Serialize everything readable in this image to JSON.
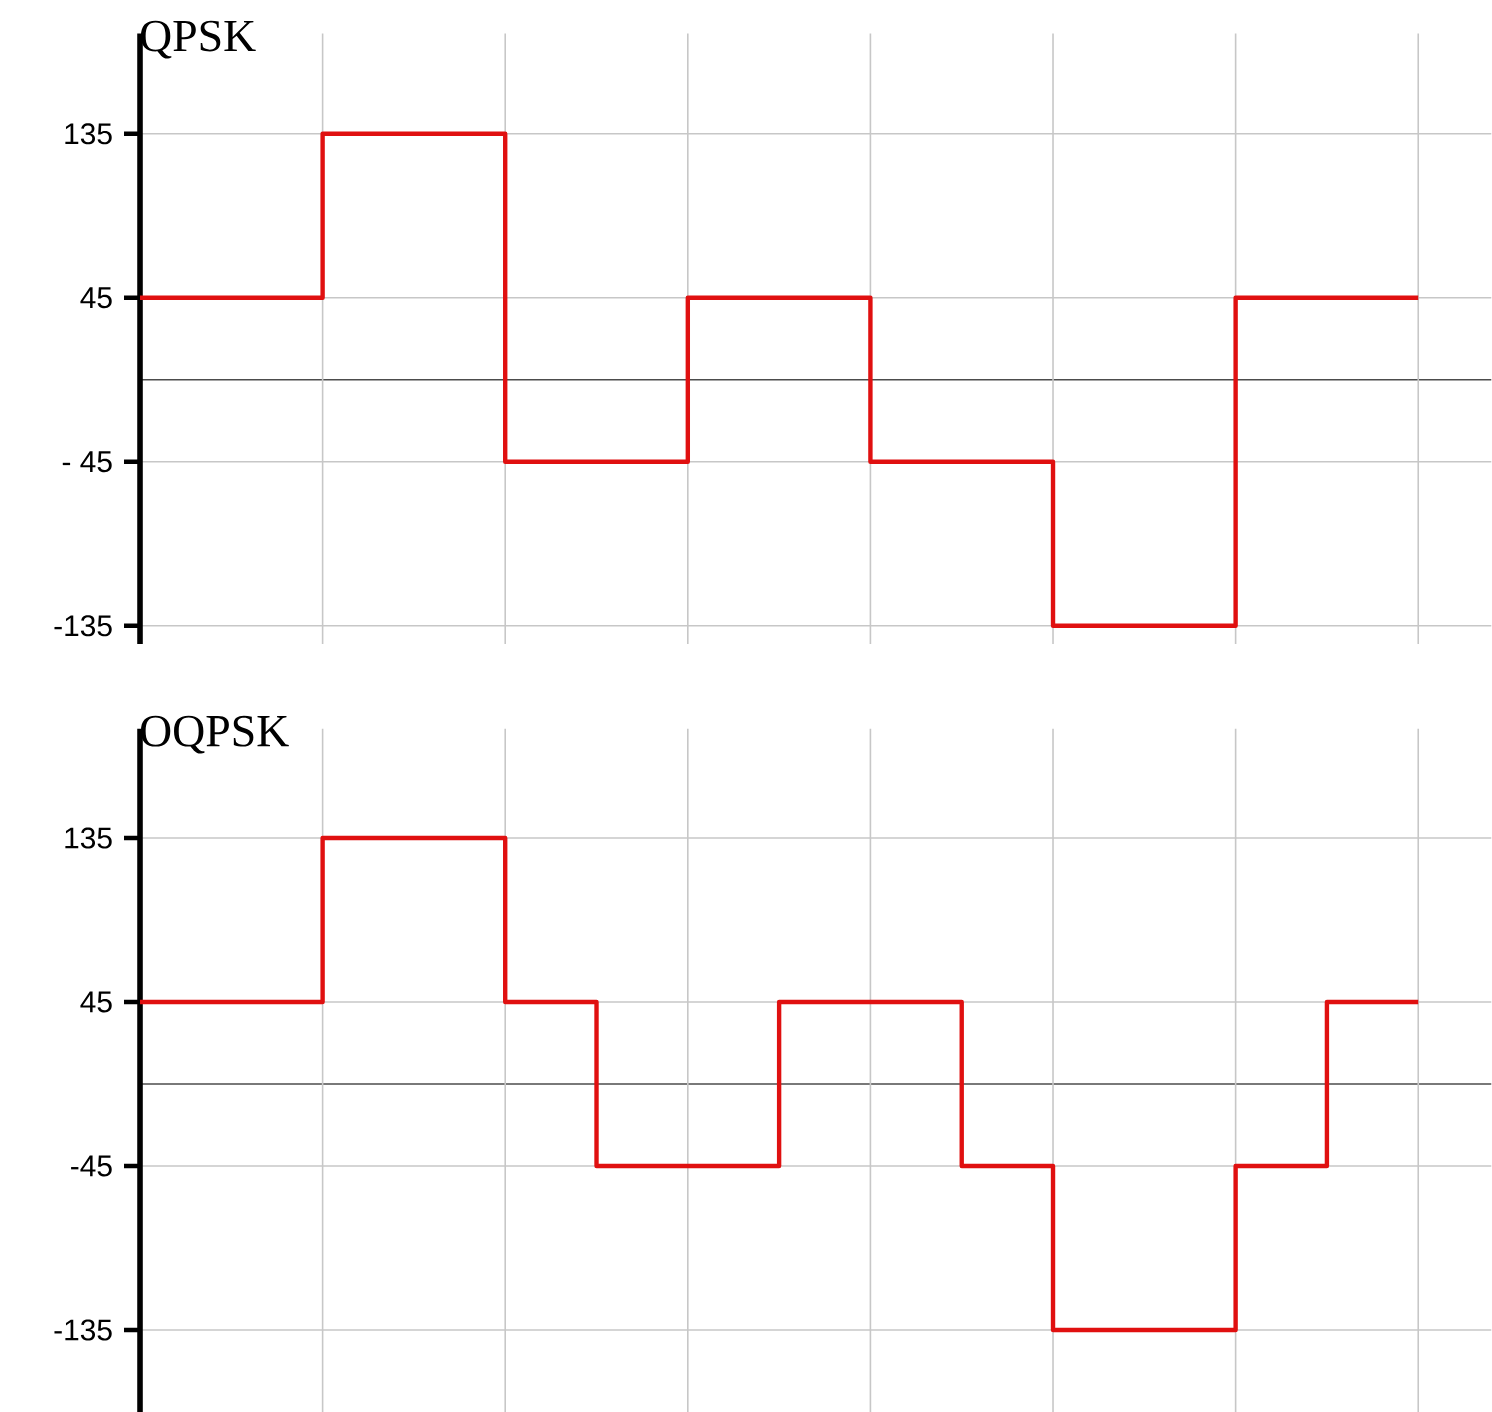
{
  "chart_data": [
    {
      "type": "step",
      "title": "QPSK",
      "categories": [
        null,
        null,
        null,
        null,
        null,
        null,
        null,
        null,
        null,
        null,
        null,
        null,
        null,
        null,
        null
      ],
      "values": [
        45,
        45,
        135,
        135,
        -45,
        -45,
        45,
        45,
        -45,
        -45,
        -135,
        -135,
        45,
        45,
        45
      ],
      "color": "#e01010",
      "ylim": [
        -145,
        190
      ],
      "yticks": [
        {
          "value": -135,
          "label": "-135"
        },
        {
          "value": -45,
          "label": "- 45"
        },
        {
          "value": 45,
          "label": "45"
        },
        {
          "value": 135,
          "label": "135"
        }
      ],
      "grid": true
    },
    {
      "type": "step",
      "title": "OQPSK",
      "categories": [
        null,
        null,
        null,
        null,
        null,
        null,
        null,
        null,
        null,
        null,
        null,
        null,
        null,
        null,
        null
      ],
      "values": [
        45,
        45,
        135,
        135,
        45,
        -45,
        -45,
        45,
        45,
        -45,
        -135,
        -135,
        -45,
        45,
        45
      ],
      "color": "#e01010",
      "ylim": [
        -180,
        195
      ],
      "yticks": [
        {
          "value": -135,
          "label": "-135"
        },
        {
          "value": -45,
          "label": "-45"
        },
        {
          "value": 45,
          "label": "45"
        },
        {
          "value": 135,
          "label": "135"
        }
      ],
      "grid": true
    }
  ]
}
